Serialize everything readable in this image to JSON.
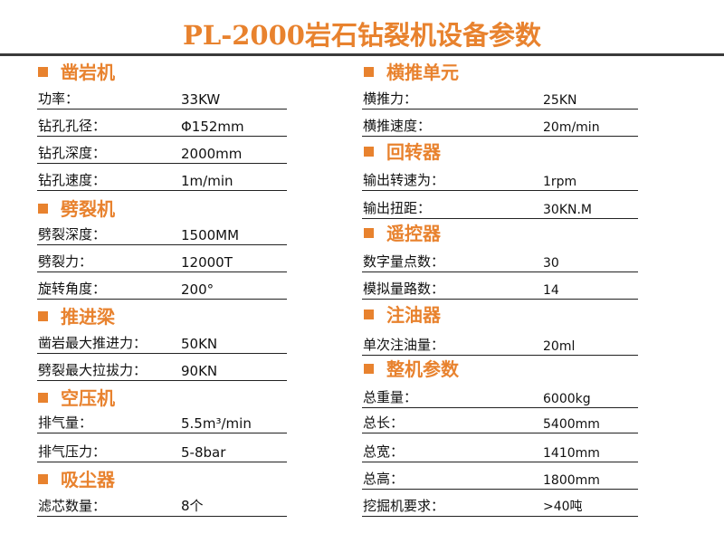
{
  "title": "PL-2000岩石钻裂机设备参数",
  "colors": {
    "accent": "#e8822e",
    "rule": "#3a3a3a"
  },
  "left": [
    {
      "header": "凿岩机",
      "rows": [
        {
          "label": "功率：",
          "value": "33KW"
        },
        {
          "label": "钻孔孔径：",
          "value": "Φ152mm"
        },
        {
          "label": "钻孔深度：",
          "value": "2000mm"
        },
        {
          "label": "钻孔速度：",
          "value": "1m/min"
        }
      ]
    },
    {
      "header": "劈裂机",
      "rows": [
        {
          "label": "劈裂深度：",
          "value": "1500MM"
        },
        {
          "label": "劈裂力：",
          "value": "12000T"
        },
        {
          "label": "旋转角度：",
          "value": "200°"
        }
      ]
    },
    {
      "header": "推进梁",
      "rows": [
        {
          "label": "凿岩最大推进力：",
          "value": "50KN"
        },
        {
          "label": "劈裂最大拉拔力：",
          "value": "90KN"
        }
      ]
    },
    {
      "header": "空压机",
      "rows": [
        {
          "label": "排气量：",
          "value": "5.5m³/min"
        },
        {
          "label": "排气压力：",
          "value": "5-8bar"
        }
      ]
    },
    {
      "header": "吸尘器",
      "rows": [
        {
          "label": "滤芯数量：",
          "value": "8个"
        }
      ]
    }
  ],
  "right": [
    {
      "header": "横推单元",
      "rows": [
        {
          "label": "横推力：",
          "value": "25KN"
        },
        {
          "label": "横推速度：",
          "value": "20m/min"
        }
      ]
    },
    {
      "header": "回转器",
      "rows": [
        {
          "label": "输出转速为：",
          "value": "1rpm"
        },
        {
          "label": "输出扭距：",
          "value": "30KN.M"
        }
      ]
    },
    {
      "header": "遥控器",
      "rows": [
        {
          "label": "数字量点数：",
          "value": "30"
        },
        {
          "label": "模拟量路数：",
          "value": "14"
        }
      ]
    },
    {
      "header": "注油器",
      "rows": [
        {
          "label": "单次注油量：",
          "value": "20ml"
        }
      ]
    },
    {
      "header": "整机参数",
      "rows": [
        {
          "label": "总重量：",
          "value": "6000kg"
        },
        {
          "label": "总长：",
          "value": "5400mm"
        },
        {
          "label": "总宽：",
          "value": "1410mm"
        },
        {
          "label": "总高：",
          "value": "1800mm"
        },
        {
          "label": "挖掘机要求：",
          "value": ">40吨"
        }
      ]
    }
  ]
}
